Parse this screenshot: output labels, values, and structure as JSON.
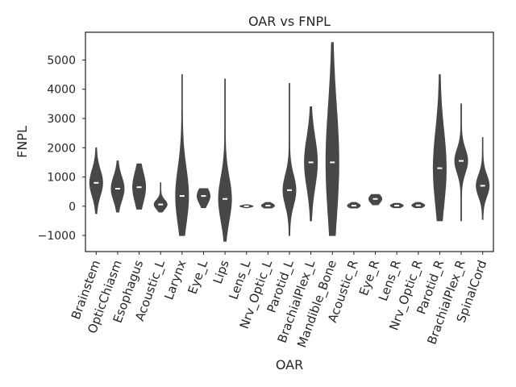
{
  "chart_data": {
    "type": "violin",
    "title": "OAR vs FNPL",
    "xlabel": "OAR",
    "ylabel": "FNPL",
    "ylim": [
      -1550,
      5950
    ],
    "yticks": [
      -1000,
      0,
      1000,
      2000,
      3000,
      4000,
      5000
    ],
    "ytick_labels": [
      "−1000",
      "0",
      "1000",
      "2000",
      "3000",
      "4000",
      "5000"
    ],
    "grid": false,
    "color": "#474747",
    "categories": [
      "Brainstem",
      "OpticChiasm",
      "Esophagus",
      "Acoustic_L",
      "Larynx",
      "Eye_L",
      "Lips",
      "Lens_L",
      "Nrv_Optic_L",
      "Parotid_L",
      "BrachialPlex_L",
      "Mandible_Bone",
      "Acoustic_R",
      "Eye_R",
      "Lens_R",
      "Nrv_Optic_R",
      "Parotid_R",
      "BrachialPlex_R",
      "SpinalCord"
    ],
    "distributions": [
      {
        "min": -250,
        "q1": 450,
        "median": 800,
        "q3": 1050,
        "max": 2000
      },
      {
        "min": -200,
        "q1": 300,
        "median": 600,
        "q3": 850,
        "max": 1550
      },
      {
        "min": -100,
        "q1": 350,
        "median": 650,
        "q3": 1050,
        "max": 1450
      },
      {
        "min": -200,
        "q1": -30,
        "median": 60,
        "q3": 180,
        "max": 800
      },
      {
        "min": -1000,
        "q1": 250,
        "median": 350,
        "q3": 1550,
        "max": 4500
      },
      {
        "min": -50,
        "q1": 150,
        "median": 350,
        "q3": 500,
        "max": 600
      },
      {
        "min": -1200,
        "q1": 100,
        "median": 250,
        "q3": 1100,
        "max": 4350
      },
      {
        "min": -50,
        "q1": -20,
        "median": 0,
        "q3": 20,
        "max": 50
      },
      {
        "min": -60,
        "q1": -20,
        "median": 20,
        "q3": 80,
        "max": 130
      },
      {
        "min": -1000,
        "q1": 300,
        "median": 550,
        "q3": 1000,
        "max": 4200
      },
      {
        "min": -500,
        "q1": 950,
        "median": 1500,
        "q3": 2100,
        "max": 3400
      },
      {
        "min": -1000,
        "q1": 550,
        "median": 1500,
        "q3": 3150,
        "max": 5600
      },
      {
        "min": -60,
        "q1": -20,
        "median": 20,
        "q3": 80,
        "max": 130
      },
      {
        "min": 50,
        "q1": 150,
        "median": 250,
        "q3": 350,
        "max": 400
      },
      {
        "min": -50,
        "q1": -20,
        "median": 20,
        "q3": 60,
        "max": 100
      },
      {
        "min": -50,
        "q1": -10,
        "median": 30,
        "q3": 80,
        "max": 130
      },
      {
        "min": -500,
        "q1": 900,
        "median": 1300,
        "q3": 2650,
        "max": 4500
      },
      {
        "min": -500,
        "q1": 1350,
        "median": 1550,
        "q3": 1900,
        "max": 3500
      },
      {
        "min": -450,
        "q1": 400,
        "median": 700,
        "q3": 900,
        "max": 2350
      }
    ]
  }
}
